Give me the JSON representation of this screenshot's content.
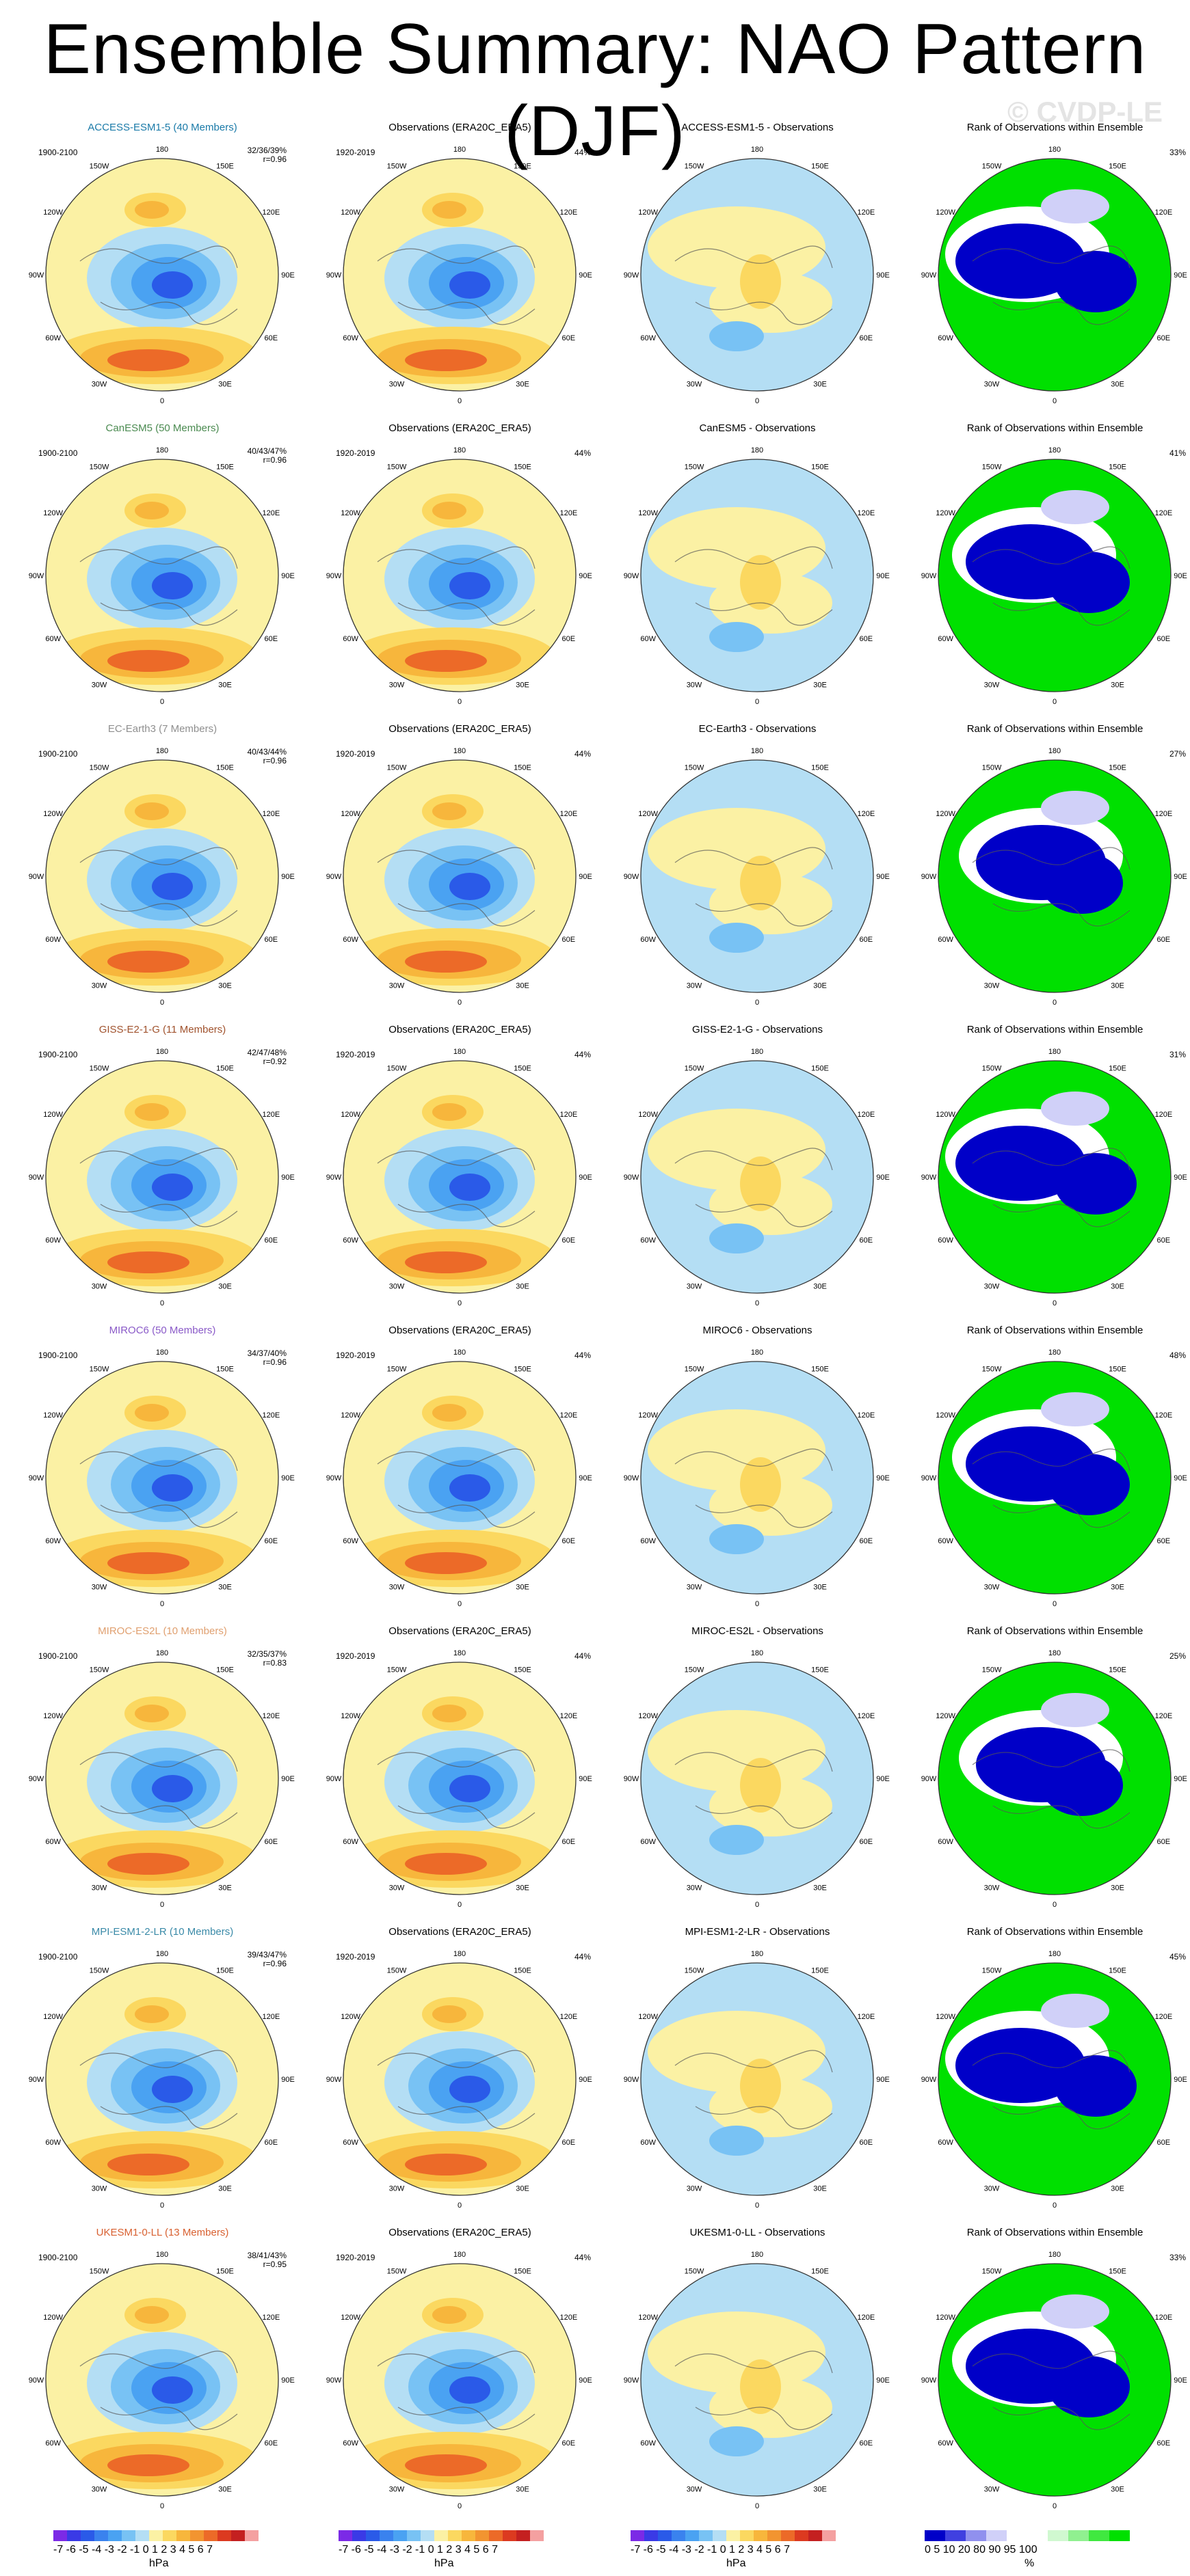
{
  "title": "Ensemble Summary: NAO Pattern (DJF)",
  "watermark": "© CVDP-LE",
  "lon_labels": [
    "180",
    "150E",
    "120E",
    "90E",
    "60E",
    "30E",
    "0",
    "30W",
    "60W",
    "90W",
    "120W",
    "150W"
  ],
  "rows": [
    {
      "model": "ACCESS-ESM1-5 (40 Members)",
      "model_color": "#1a7aa8",
      "years": "1900-2100",
      "stats": "32/36/39%",
      "corr": "r=0.96",
      "obs_pct": "44%",
      "diff_title": "ACCESS-ESM1-5 - Observations",
      "rank_pct": "33%"
    },
    {
      "model": "CanESM5 (50 Members)",
      "model_color": "#4a8a50",
      "years": "1900-2100",
      "stats": "40/43/47%",
      "corr": "r=0.96",
      "obs_pct": "44%",
      "diff_title": "CanESM5 - Observations",
      "rank_pct": "41%"
    },
    {
      "model": "EC-Earth3 (7 Members)",
      "model_color": "#8f8f8f",
      "years": "1900-2100",
      "stats": "40/43/44%",
      "corr": "r=0.96",
      "obs_pct": "44%",
      "diff_title": "EC-Earth3 - Observations",
      "rank_pct": "27%"
    },
    {
      "model": "GISS-E2-1-G (11 Members)",
      "model_color": "#a0522d",
      "years": "1900-2100",
      "stats": "42/47/48%",
      "corr": "r=0.92",
      "obs_pct": "44%",
      "diff_title": "GISS-E2-1-G - Observations",
      "rank_pct": "31%"
    },
    {
      "model": "MIROC6 (50 Members)",
      "model_color": "#8a5ac8",
      "years": "1900-2100",
      "stats": "34/37/40%",
      "corr": "r=0.96",
      "obs_pct": "44%",
      "diff_title": "MIROC6 - Observations",
      "rank_pct": "48%"
    },
    {
      "model": "MIROC-ES2L (10 Members)",
      "model_color": "#e0a070",
      "years": "1900-2100",
      "stats": "32/35/37%",
      "corr": "r=0.83",
      "obs_pct": "44%",
      "diff_title": "MIROC-ES2L - Observations",
      "rank_pct": "25%"
    },
    {
      "model": "MPI-ESM1-2-LR (10 Members)",
      "model_color": "#3a8aa8",
      "years": "1900-2100",
      "stats": "39/43/47%",
      "corr": "r=0.96",
      "obs_pct": "44%",
      "diff_title": "MPI-ESM1-2-LR - Observations",
      "rank_pct": "45%"
    },
    {
      "model": "UKESM1-0-LL (13 Members)",
      "model_color": "#d86030",
      "years": "1900-2100",
      "stats": "38/41/43%",
      "corr": "r=0.95",
      "obs_pct": "44%",
      "diff_title": "UKESM1-0-LL - Observations",
      "rank_pct": "33%"
    }
  ],
  "obs": {
    "title": "Observations (ERA20C_ERA5)",
    "years": "1920-2019"
  },
  "rank_title": "Rank of Observations within Ensemble",
  "colorbar_hpa": {
    "ticks": "-7 -6 -5 -4 -3 -2 -1 0  1  2  3  4  5  6  7",
    "unit": "hPa",
    "colors": [
      "#7b2ae6",
      "#3a3ae6",
      "#2a5ae8",
      "#3a82ee",
      "#4aa2f2",
      "#78c2f4",
      "#b4def4",
      "#fbf1a4",
      "#fbd860",
      "#f7b63c",
      "#f29430",
      "#ec6a28",
      "#dc3a20",
      "#c42020",
      "#f4a0a0"
    ]
  },
  "colorbar_pct": {
    "ticks": "0   5  10     20         80      90  95 100",
    "unit": "%",
    "colors": [
      "#0000c8",
      "#4040e0",
      "#9090ee",
      "#d0d0f8",
      "#ffffff",
      "#ffffff",
      "#d0f8d0",
      "#90f090",
      "#40e840",
      "#00e000"
    ]
  }
}
